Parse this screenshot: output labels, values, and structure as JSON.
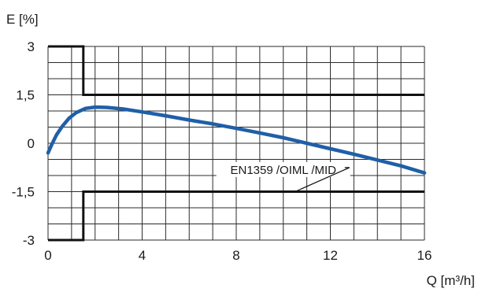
{
  "chart_data": {
    "type": "line",
    "ylabel": "E [%]",
    "xlabel": "Q [m³/h]",
    "xlim": [
      0,
      16
    ],
    "ylim": [
      -3,
      3
    ],
    "x_ticks": [
      {
        "value": 0,
        "label": "0"
      },
      {
        "value": 4,
        "label": "4"
      },
      {
        "value": 8,
        "label": "8"
      },
      {
        "value": 12,
        "label": "12"
      },
      {
        "value": 16,
        "label": "16"
      }
    ],
    "y_ticks": [
      {
        "value": 3,
        "label": "3"
      },
      {
        "value": 1.5,
        "label": "1,5"
      },
      {
        "value": 0,
        "label": "0"
      },
      {
        "value": -1.5,
        "label": "-1,5"
      },
      {
        "value": -3,
        "label": "-3"
      }
    ],
    "grid": true,
    "grid_x_step": 1,
    "grid_y_step": 0.5,
    "series": [
      {
        "color": "#1f5fa8",
        "points": [
          [
            0,
            -0.3
          ],
          [
            0.15,
            -0.05
          ],
          [
            0.35,
            0.25
          ],
          [
            0.6,
            0.52
          ],
          [
            0.9,
            0.78
          ],
          [
            1.2,
            0.95
          ],
          [
            1.6,
            1.08
          ],
          [
            2.0,
            1.12
          ],
          [
            2.5,
            1.11
          ],
          [
            3.2,
            1.06
          ],
          [
            4,
            0.97
          ],
          [
            5,
            0.85
          ],
          [
            6,
            0.72
          ],
          [
            7,
            0.6
          ],
          [
            8,
            0.46
          ],
          [
            9,
            0.32
          ],
          [
            10,
            0.17
          ],
          [
            11,
            0.0
          ],
          [
            12,
            -0.17
          ],
          [
            13,
            -0.34
          ],
          [
            14,
            -0.52
          ],
          [
            15,
            -0.7
          ],
          [
            16,
            -0.92
          ]
        ]
      }
    ],
    "limit_lines": {
      "color": "#111111",
      "upper": [
        [
          0,
          3
        ],
        [
          1.5,
          3
        ],
        [
          1.5,
          1.5
        ],
        [
          16,
          1.5
        ]
      ],
      "lower": [
        [
          0,
          -3
        ],
        [
          1.5,
          -3
        ],
        [
          1.5,
          -1.5
        ],
        [
          16,
          -1.5
        ]
      ]
    },
    "annotations": [
      {
        "text": "EN1359 /OIML /MID",
        "x": 10,
        "y": -0.9,
        "target": [
          10.5,
          -1.5
        ]
      }
    ]
  }
}
